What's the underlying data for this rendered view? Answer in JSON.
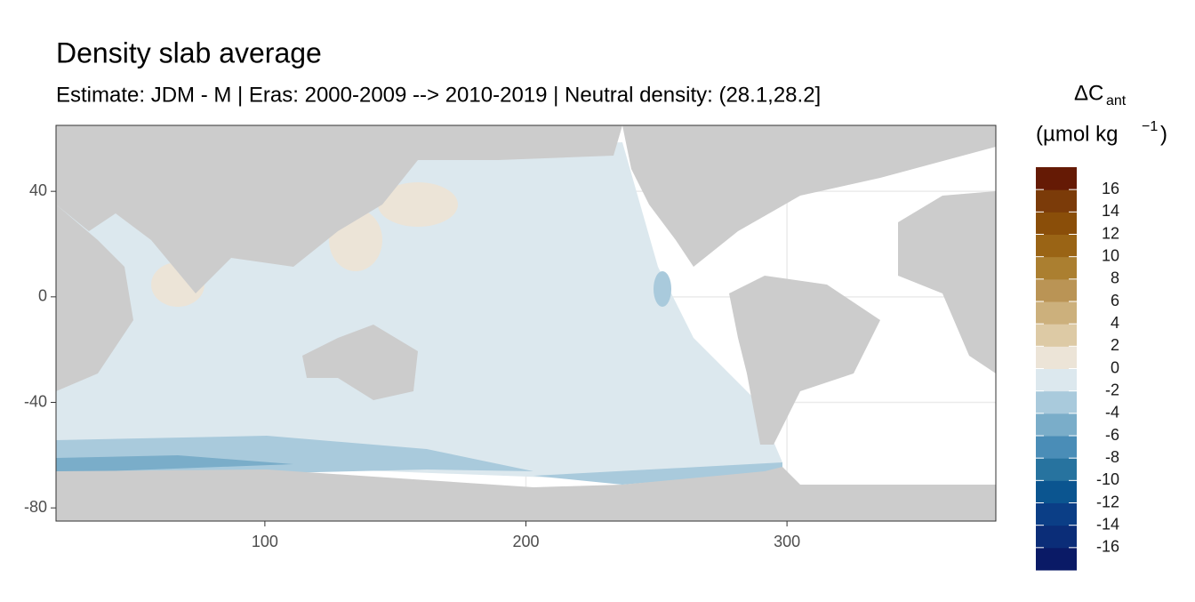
{
  "chart_data": {
    "type": "map",
    "title": "Density slab average",
    "subtitle": "Estimate: JDM - M | Eras: 2000-2009 --> 2010-2019 | Neutral density: (28.1,28.2]",
    "xlim": [
      20,
      380
    ],
    "ylim": [
      -85,
      65
    ],
    "xticks": [
      100,
      200,
      300
    ],
    "yticks": [
      40,
      0,
      -40,
      -80
    ],
    "grid": true,
    "legend": {
      "symbol": "ΔC",
      "subscript": "ant",
      "unit": "(µmol kg",
      "unit_exponent": "−1",
      "unit_close": ")",
      "lim": [
        -18,
        18
      ],
      "ticks": [
        16,
        14,
        12,
        10,
        8,
        6,
        4,
        2,
        0,
        -2,
        -4,
        -6,
        -8,
        -10,
        -12,
        -14,
        -16
      ],
      "colors": [
        "#0a1a66",
        "#0b2d78",
        "#0b3e86",
        "#0b5590",
        "#27739f",
        "#4a8db7",
        "#7aadc9",
        "#a9cadc",
        "#dce8ee",
        "#ece4d7",
        "#ddcaa5",
        "#ccb07c",
        "#ba9455",
        "#ab7f30",
        "#9a6415",
        "#8a4e09",
        "#7b3b09",
        "#651a05"
      ]
    }
  }
}
